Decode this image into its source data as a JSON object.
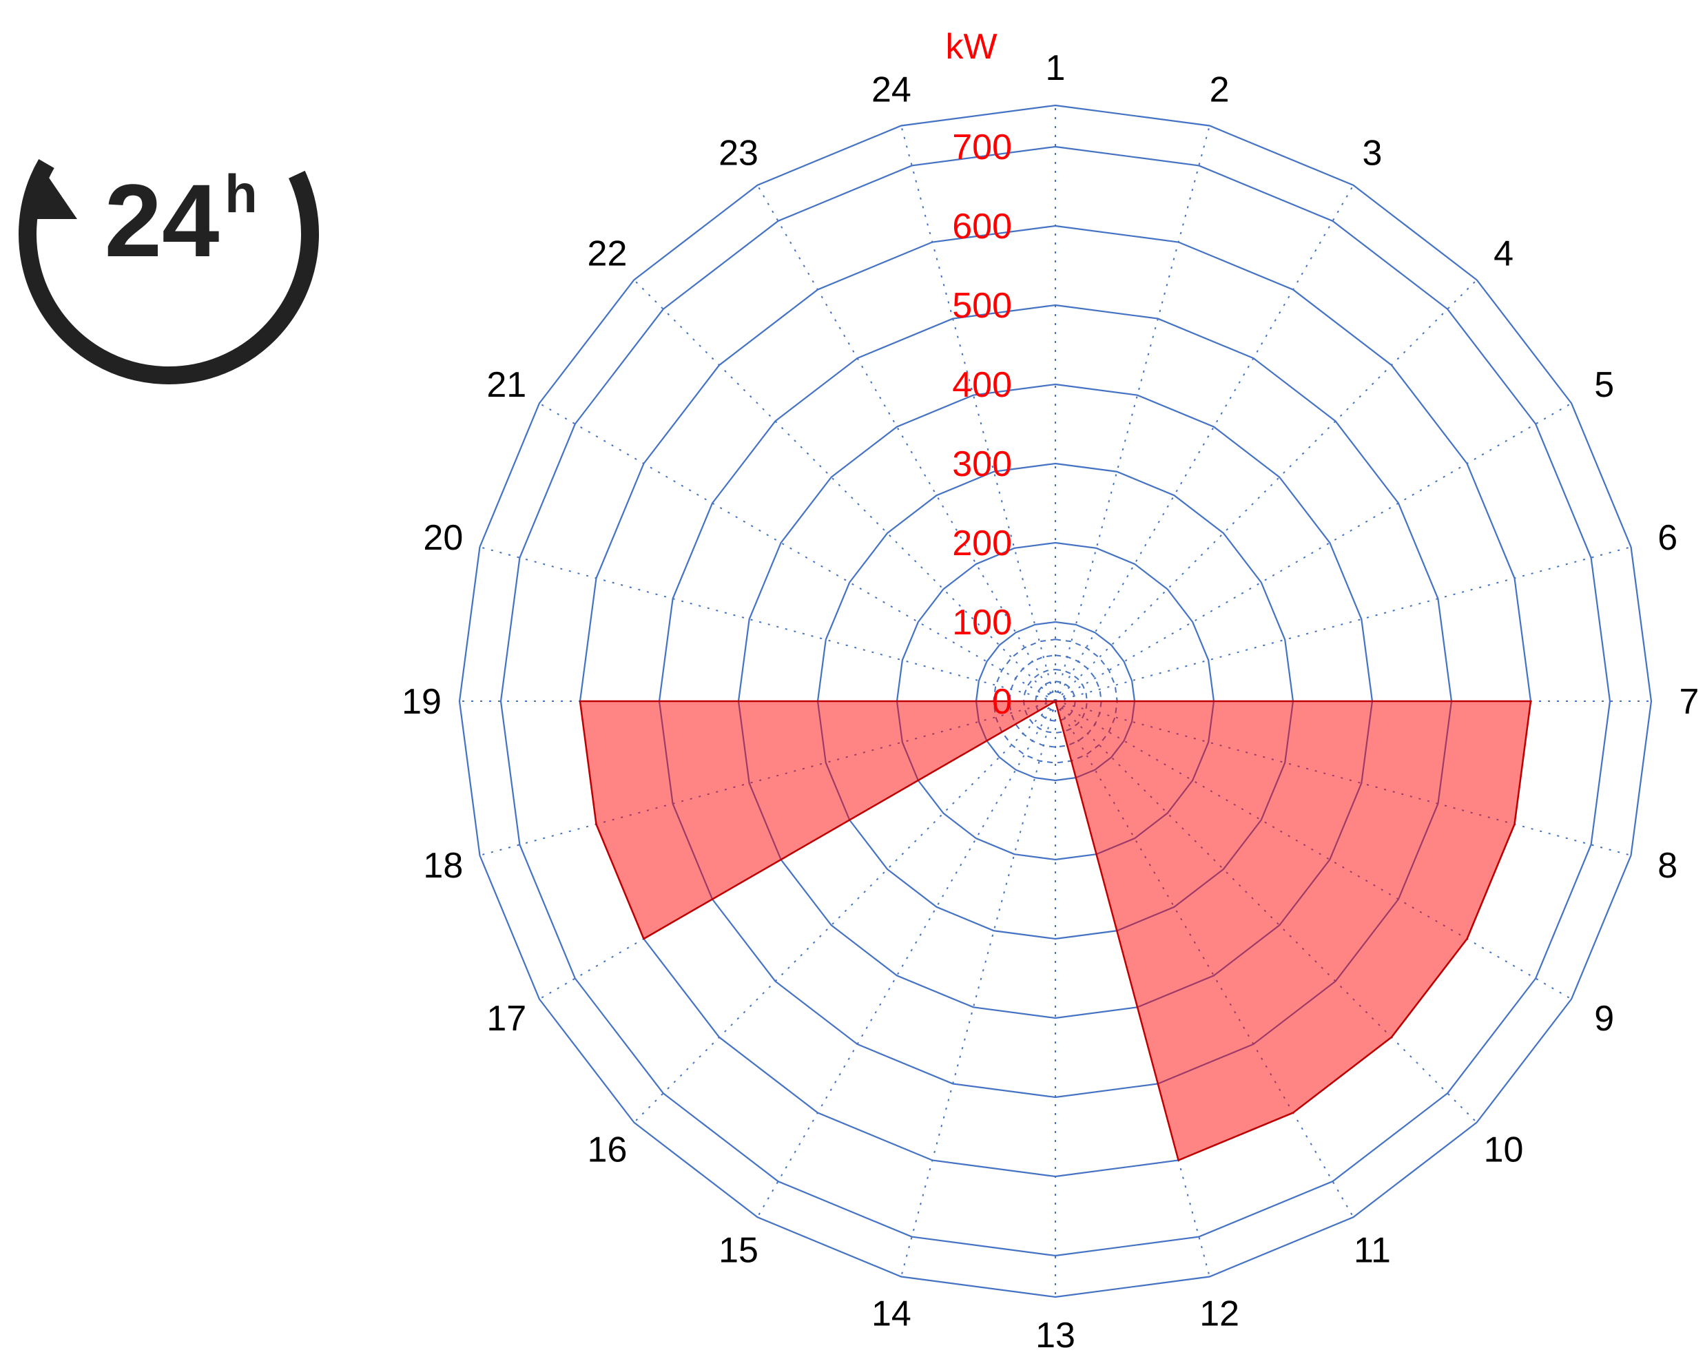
{
  "icon": {
    "name": "24h-cycle-icon",
    "number": "24",
    "suffix": "h",
    "color": "#222222"
  },
  "colors": {
    "grid": "#4472C4",
    "fill": "#FF0000",
    "fill_opacity": 0.48,
    "stroke": "#C00000",
    "radial_text": "#FF0000",
    "hour_text": "#000000"
  },
  "chart_data": {
    "type": "radar-area",
    "categories": [
      "1",
      "2",
      "3",
      "4",
      "5",
      "6",
      "7",
      "8",
      "9",
      "10",
      "11",
      "12",
      "13",
      "14",
      "15",
      "16",
      "17",
      "18",
      "19",
      "20",
      "21",
      "22",
      "23",
      "24"
    ],
    "unit_label": "kW",
    "radial_ticks": [
      "0",
      "100",
      "200",
      "300",
      "400",
      "500",
      "600",
      "700"
    ],
    "rlim": [
      0,
      700
    ],
    "series": [
      {
        "values": [
          0,
          0,
          0,
          0,
          0,
          0,
          600,
          600,
          600,
          600,
          600,
          600,
          0,
          0,
          0,
          0,
          600,
          600,
          600,
          0,
          0,
          0,
          0,
          0
        ]
      }
    ],
    "grid": true
  }
}
